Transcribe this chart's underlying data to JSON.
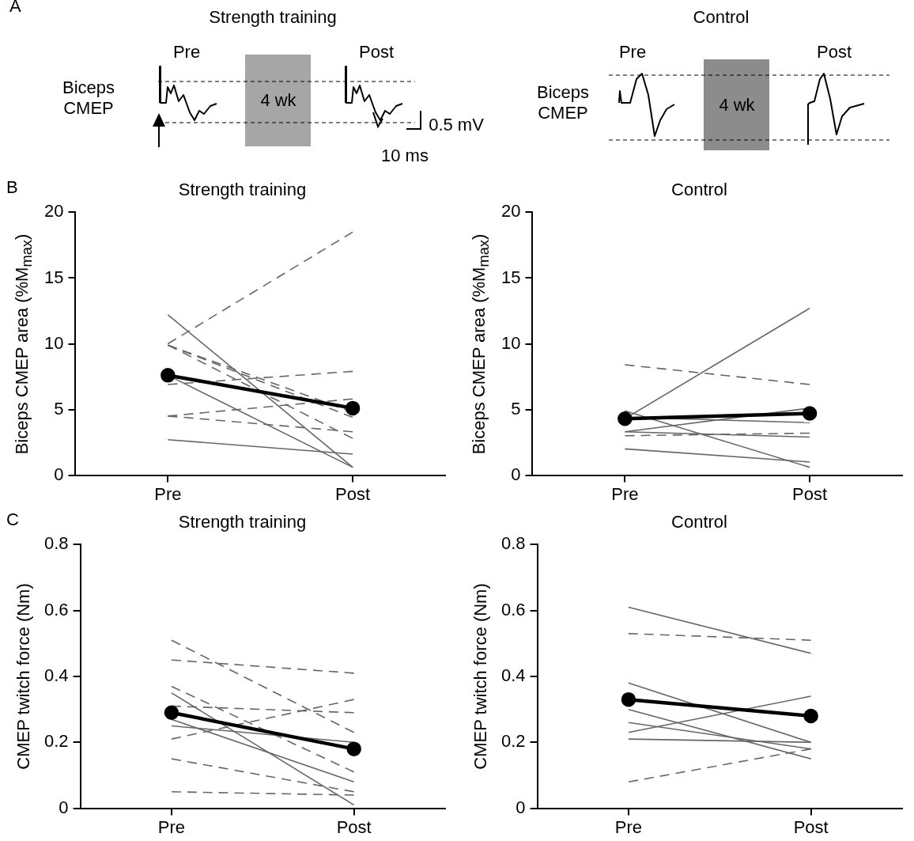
{
  "chart_data": [
    {
      "type": "other",
      "annotations": [
        "A",
        "Strength training",
        "Pre",
        "Post",
        "Biceps CMEP",
        "4 wk",
        "0.5 mV",
        "10 ms",
        "Control",
        "Pre",
        "Post",
        "Biceps CMEP",
        "4 wk"
      ]
    },
    {
      "type": "line",
      "title": "Strength training",
      "ylabel": "Biceps CMEP area (%M$_{max}$)",
      "annotations": [
        "B"
      ],
      "categories": [
        "Pre",
        "Post"
      ],
      "ylim": [
        0,
        20
      ],
      "yticks": [
        0,
        5,
        10,
        15,
        20
      ],
      "series": [
        {
          "color": "#666666",
          "values": [
            10,
            18.5
          ],
          "line_style": "dashed",
          "marker": "none"
        },
        {
          "color": "#666666",
          "values": [
            9.9,
            4.8
          ],
          "line_style": "dashed",
          "marker": "none"
        },
        {
          "color": "#666666",
          "values": [
            9.9,
            4.4
          ],
          "line_style": "dashed",
          "marker": "none"
        },
        {
          "color": "#666666",
          "values": [
            9.9,
            2.8
          ],
          "line_style": "dashed",
          "marker": "none"
        },
        {
          "color": "#666666",
          "values": [
            6.9,
            7.9
          ],
          "line_style": "dashed",
          "marker": "none"
        },
        {
          "color": "#666666",
          "values": [
            4.5,
            5.8
          ],
          "line_style": "dashed",
          "marker": "none"
        },
        {
          "color": "#666666",
          "values": [
            4.5,
            3.3
          ],
          "line_style": "dashed",
          "marker": "none"
        },
        {
          "color": "#666666",
          "values": [
            12.2,
            0.6
          ],
          "line_style": "solid",
          "marker": "none"
        },
        {
          "color": "#666666",
          "values": [
            7.6,
            0.6
          ],
          "line_style": "solid",
          "marker": "none"
        },
        {
          "color": "#666666",
          "values": [
            2.7,
            1.6
          ],
          "line_style": "solid",
          "marker": "none"
        },
        {
          "color": "#000000",
          "values": [
            7.6,
            5.1
          ],
          "line_style": "solid",
          "marker": "circle"
        }
      ]
    },
    {
      "type": "line",
      "title": "Control",
      "ylabel": "Biceps CMEP area (%M$_{max}$)",
      "categories": [
        "Pre",
        "Post"
      ],
      "ylim": [
        0,
        20
      ],
      "yticks": [
        0,
        5,
        10,
        15,
        20
      ],
      "series": [
        {
          "color": "#666666",
          "values": [
            8.4,
            6.9
          ],
          "line_style": "dashed",
          "marker": "none"
        },
        {
          "color": "#666666",
          "values": [
            3,
            3.2
          ],
          "line_style": "dashed",
          "marker": "none"
        },
        {
          "color": "#666666",
          "values": [
            4.3,
            12.7
          ],
          "line_style": "solid",
          "marker": "none"
        },
        {
          "color": "#666666",
          "values": [
            4.9,
            0.6
          ],
          "line_style": "solid",
          "marker": "none"
        },
        {
          "color": "#666666",
          "values": [
            3.3,
            5.1
          ],
          "line_style": "solid",
          "marker": "none"
        },
        {
          "color": "#666666",
          "values": [
            3.3,
            2.9
          ],
          "line_style": "solid",
          "marker": "none"
        },
        {
          "color": "#666666",
          "values": [
            4.4,
            4
          ],
          "line_style": "solid",
          "marker": "none"
        },
        {
          "color": "#666666",
          "values": [
            2,
            1
          ],
          "line_style": "solid",
          "marker": "none"
        },
        {
          "color": "#000000",
          "values": [
            4.3,
            4.7
          ],
          "line_style": "solid",
          "marker": "circle"
        }
      ]
    },
    {
      "type": "line",
      "title": "Strength training",
      "ylabel": "CMEP twitch force (Nm)",
      "annotations": [
        "C"
      ],
      "categories": [
        "Pre",
        "Post"
      ],
      "ylim": [
        0,
        0.8
      ],
      "yticks": [
        0,
        0.2,
        0.4,
        0.6,
        0.8
      ],
      "series": [
        {
          "color": "#666666",
          "values": [
            0.51,
            0.23
          ],
          "line_style": "dashed",
          "marker": "none"
        },
        {
          "color": "#666666",
          "values": [
            0.45,
            0.41
          ],
          "line_style": "dashed",
          "marker": "none"
        },
        {
          "color": "#666666",
          "values": [
            0.37,
            0.11
          ],
          "line_style": "dashed",
          "marker": "none"
        },
        {
          "color": "#666666",
          "values": [
            0.31,
            0.29
          ],
          "line_style": "dashed",
          "marker": "none"
        },
        {
          "color": "#666666",
          "values": [
            0.21,
            0.33
          ],
          "line_style": "dashed",
          "marker": "none"
        },
        {
          "color": "#666666",
          "values": [
            0.15,
            0.05
          ],
          "line_style": "dashed",
          "marker": "none"
        },
        {
          "color": "#666666",
          "values": [
            0.05,
            0.04
          ],
          "line_style": "dashed",
          "marker": "none"
        },
        {
          "color": "#666666",
          "values": [
            0.35,
            0.01
          ],
          "line_style": "solid",
          "marker": "none"
        },
        {
          "color": "#666666",
          "values": [
            0.27,
            0.08
          ],
          "line_style": "solid",
          "marker": "none"
        },
        {
          "color": "#666666",
          "values": [
            0.25,
            0.2
          ],
          "line_style": "solid",
          "marker": "none"
        },
        {
          "color": "#000000",
          "values": [
            0.29,
            0.18
          ],
          "line_style": "solid",
          "marker": "circle"
        }
      ]
    },
    {
      "type": "line",
      "title": "Control",
      "ylabel": "CMEP twitch force (Nm)",
      "categories": [
        "Pre",
        "Post"
      ],
      "ylim": [
        0,
        0.8
      ],
      "yticks": [
        0,
        0.2,
        0.4,
        0.6,
        0.8
      ],
      "series": [
        {
          "color": "#666666",
          "values": [
            0.53,
            0.51
          ],
          "line_style": "dashed",
          "marker": "none"
        },
        {
          "color": "#666666",
          "values": [
            0.08,
            0.18
          ],
          "line_style": "dashed",
          "marker": "none"
        },
        {
          "color": "#666666",
          "values": [
            0.61,
            0.47
          ],
          "line_style": "solid",
          "marker": "none"
        },
        {
          "color": "#666666",
          "values": [
            0.38,
            0.2
          ],
          "line_style": "solid",
          "marker": "none"
        },
        {
          "color": "#666666",
          "values": [
            0.3,
            0.15
          ],
          "line_style": "solid",
          "marker": "none"
        },
        {
          "color": "#666666",
          "values": [
            0.26,
            0.18
          ],
          "line_style": "solid",
          "marker": "none"
        },
        {
          "color": "#666666",
          "values": [
            0.23,
            0.34
          ],
          "line_style": "solid",
          "marker": "none"
        },
        {
          "color": "#666666",
          "values": [
            0.21,
            0.2
          ],
          "line_style": "solid",
          "marker": "none"
        },
        {
          "color": "#000000",
          "values": [
            0.33,
            0.28
          ],
          "line_style": "solid",
          "marker": "circle"
        }
      ]
    }
  ]
}
